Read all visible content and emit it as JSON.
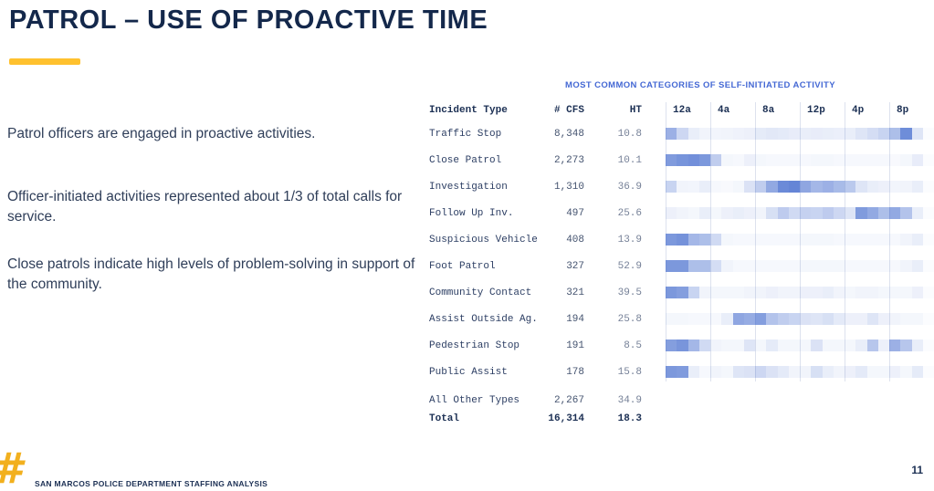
{
  "slide": {
    "title": "PATROL – USE OF PROACTIVE TIME",
    "paragraphs": [
      "Patrol officers are engaged in proactive activities.",
      "Officer-initiated activities represented about 1/3 of total calls for service.",
      "Close patrols indicate high levels of problem-solving in support of the community."
    ],
    "footer_text": "SAN MARCOS POLICE DEPARTMENT STAFFING ANALYSIS",
    "page_number": "11",
    "logo_glyph": "#",
    "colors": {
      "title_text": "#14284b",
      "body_text": "#2f3e59",
      "accent_bar": "#FFC12E",
      "logo": "#F2B01E",
      "chart_title": "#4468d4",
      "heat_base_blue": "#4a70cf",
      "grid_line": "#dde2ee"
    }
  },
  "chart_data": {
    "type": "heatmap",
    "title": "MOST COMMON CATEGORIES OF SELF-INITIATED ACTIVITY",
    "columns": {
      "incident": "Incident Type",
      "cfs": "# CFS",
      "ht": "HT"
    },
    "time_labels": [
      "12a",
      "4a",
      "8a",
      "12p",
      "4p",
      "8p"
    ],
    "heat_note": "24 hourly bins per row; values are relative intensity 0-1 of base blue #4a70cf",
    "rows": [
      {
        "type": "Traffic Stop",
        "cfs": "8,348",
        "ht": "10.8",
        "heat": [
          0.55,
          0.28,
          0.12,
          0.08,
          0.07,
          0.08,
          0.09,
          0.1,
          0.14,
          0.16,
          0.15,
          0.13,
          0.12,
          0.13,
          0.12,
          0.11,
          0.12,
          0.18,
          0.24,
          0.3,
          0.45,
          0.8,
          0.18,
          0.02
        ]
      },
      {
        "type": "Close Patrol",
        "cfs": "2,273",
        "ht": "10.1",
        "heat": [
          0.7,
          0.75,
          0.78,
          0.72,
          0.35,
          0.06,
          0.05,
          0.1,
          0.06,
          0.05,
          0.05,
          0.05,
          0.05,
          0.06,
          0.06,
          0.05,
          0.05,
          0.05,
          0.05,
          0.05,
          0.04,
          0.06,
          0.13,
          0.02
        ]
      },
      {
        "type": "Investigation",
        "cfs": "1,310",
        "ht": "36.9",
        "heat": [
          0.3,
          0.08,
          0.07,
          0.12,
          0.05,
          0.04,
          0.06,
          0.2,
          0.35,
          0.6,
          0.82,
          0.85,
          0.62,
          0.5,
          0.55,
          0.48,
          0.38,
          0.18,
          0.12,
          0.1,
          0.07,
          0.08,
          0.12,
          0.02
        ]
      },
      {
        "type": "Follow Up Inv.",
        "cfs": "497",
        "ht": "25.6",
        "heat": [
          0.1,
          0.08,
          0.06,
          0.12,
          0.06,
          0.1,
          0.12,
          0.1,
          0.08,
          0.22,
          0.36,
          0.26,
          0.32,
          0.3,
          0.36,
          0.28,
          0.18,
          0.7,
          0.6,
          0.45,
          0.6,
          0.42,
          0.12,
          0.02
        ]
      },
      {
        "type": "Suspicious Vehicle",
        "cfs": "408",
        "ht": "13.9",
        "heat": [
          0.72,
          0.76,
          0.5,
          0.45,
          0.26,
          0.06,
          0.05,
          0.05,
          0.05,
          0.05,
          0.05,
          0.05,
          0.06,
          0.06,
          0.06,
          0.05,
          0.05,
          0.05,
          0.05,
          0.05,
          0.05,
          0.08,
          0.12,
          0.02
        ]
      },
      {
        "type": "Foot Patrol",
        "cfs": "327",
        "ht": "52.9",
        "heat": [
          0.72,
          0.72,
          0.45,
          0.45,
          0.24,
          0.08,
          0.05,
          0.05,
          0.05,
          0.05,
          0.05,
          0.05,
          0.06,
          0.06,
          0.06,
          0.06,
          0.05,
          0.05,
          0.05,
          0.05,
          0.05,
          0.08,
          0.12,
          0.02
        ]
      },
      {
        "type": "Community Contact",
        "cfs": "321",
        "ht": "39.5",
        "heat": [
          0.72,
          0.68,
          0.3,
          0.08,
          0.06,
          0.06,
          0.06,
          0.08,
          0.08,
          0.1,
          0.08,
          0.08,
          0.1,
          0.1,
          0.12,
          0.08,
          0.06,
          0.08,
          0.08,
          0.06,
          0.06,
          0.06,
          0.1,
          0.02
        ]
      },
      {
        "type": "Assist Outside Ag.",
        "cfs": "194",
        "ht": "25.8",
        "heat": [
          0.06,
          0.06,
          0.05,
          0.05,
          0.05,
          0.12,
          0.62,
          0.58,
          0.68,
          0.42,
          0.35,
          0.3,
          0.2,
          0.18,
          0.22,
          0.15,
          0.1,
          0.1,
          0.18,
          0.1,
          0.08,
          0.06,
          0.06,
          0.02
        ]
      },
      {
        "type": "Pedestrian Stop",
        "cfs": "191",
        "ht": "8.5",
        "heat": [
          0.68,
          0.74,
          0.5,
          0.26,
          0.08,
          0.06,
          0.06,
          0.18,
          0.06,
          0.14,
          0.06,
          0.06,
          0.06,
          0.2,
          0.06,
          0.06,
          0.06,
          0.12,
          0.4,
          0.1,
          0.55,
          0.4,
          0.12,
          0.02
        ]
      },
      {
        "type": "Public Assist",
        "cfs": "178",
        "ht": "15.8",
        "heat": [
          0.72,
          0.7,
          0.12,
          0.05,
          0.08,
          0.06,
          0.18,
          0.2,
          0.28,
          0.2,
          0.15,
          0.08,
          0.08,
          0.22,
          0.12,
          0.08,
          0.1,
          0.15,
          0.06,
          0.06,
          0.1,
          0.06,
          0.14,
          0.02
        ]
      }
    ],
    "summary_rows": [
      {
        "type": "All Other Types",
        "cfs": "2,267",
        "ht": "34.9",
        "bold": false
      },
      {
        "type": "Total",
        "cfs": "16,314",
        "ht": "18.3",
        "bold": true
      }
    ]
  }
}
